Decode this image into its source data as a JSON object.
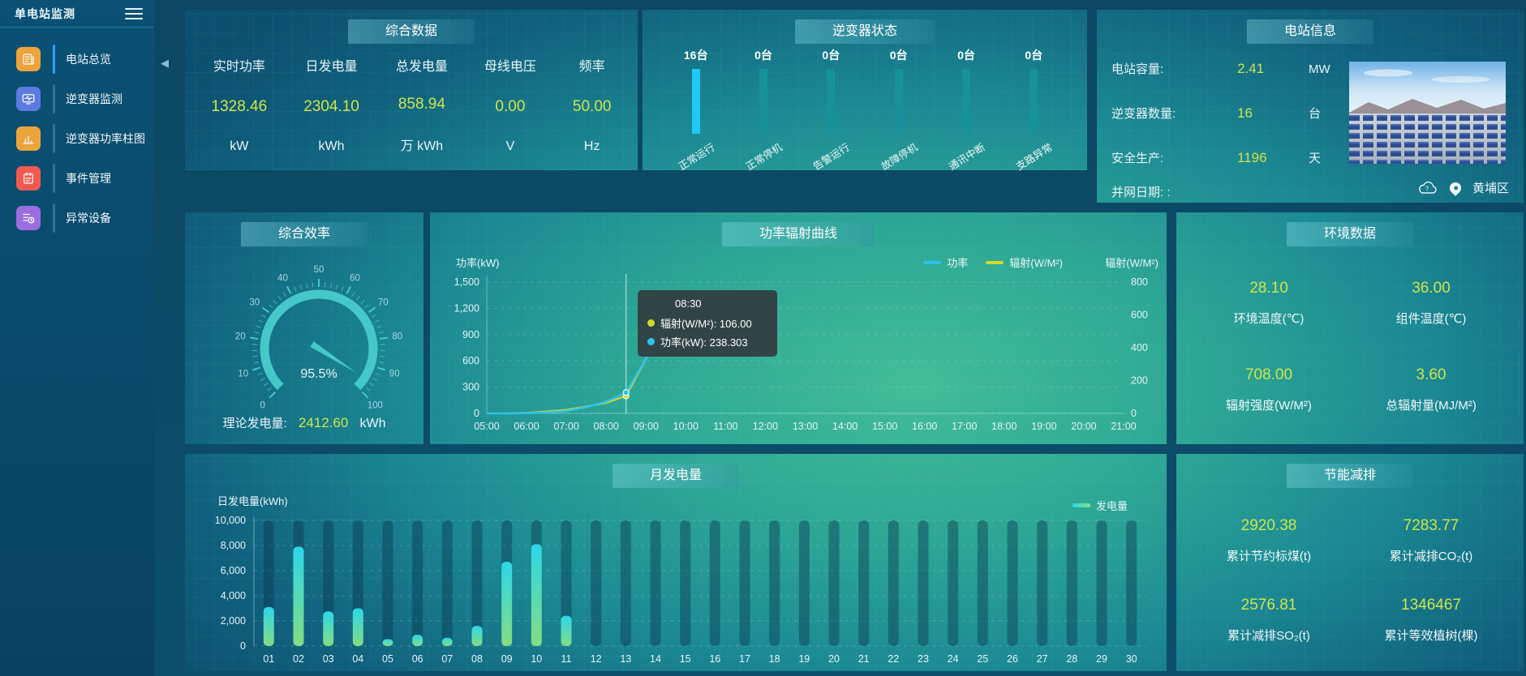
{
  "app": {
    "title": "单电站监测"
  },
  "sidebar": {
    "items": [
      {
        "label": "电站总览",
        "icon": "station-overview-icon",
        "color": "#eda33c",
        "active": true
      },
      {
        "label": "逆变器监测",
        "icon": "inverter-monitor-icon",
        "color": "#5b7be0",
        "active": false
      },
      {
        "label": "逆变器功率柱图",
        "icon": "inverter-power-bars-icon",
        "color": "#eda33c",
        "active": false
      },
      {
        "label": "事件管理",
        "icon": "event-management-icon",
        "color": "#f25a50",
        "active": false
      },
      {
        "label": "异常设备",
        "icon": "abnormal-device-icon",
        "color": "#9a6ce0",
        "active": false
      }
    ]
  },
  "panels": {
    "summary": {
      "title": "综合数据",
      "metrics": [
        {
          "label": "实时功率",
          "value": "1328.46",
          "unit": "kW"
        },
        {
          "label": "日发电量",
          "value": "2304.10",
          "unit": "kWh"
        },
        {
          "label": "总发电量",
          "value": "858.94",
          "unit": "万  kWh"
        },
        {
          "label": "母线电压",
          "value": "0.00",
          "unit": "V"
        },
        {
          "label": "频率",
          "value": "50.00",
          "unit": "Hz"
        }
      ]
    },
    "inverter_status": {
      "items": [
        {
          "count": "16台",
          "label": "正常运行",
          "highlight": true
        },
        {
          "count": "0台",
          "label": "正常停机",
          "highlight": false
        },
        {
          "count": "0台",
          "label": "告警运行",
          "highlight": false
        },
        {
          "count": "0台",
          "label": "故障停机",
          "highlight": false
        },
        {
          "count": "0台",
          "label": "通讯中断",
          "highlight": false
        },
        {
          "count": "0台",
          "label": "支路异常",
          "highlight": false
        }
      ]
    },
    "station_info": {
      "title": "电站信息",
      "rows": [
        {
          "label": "电站容量:",
          "value": "2.41",
          "unit": "MW"
        },
        {
          "label": "逆变器数量:",
          "value": "16",
          "unit": "台"
        },
        {
          "label": "安全生产:",
          "value": "1196",
          "unit": "天"
        },
        {
          "label": "并网日期:  :",
          "value": "",
          "unit": ""
        }
      ],
      "location": "黄埔区"
    },
    "efficiency": {
      "footer_label": "理论发电量:",
      "footer_value": "2412.60",
      "footer_unit": "kWh"
    },
    "environment": {
      "title": "环境数据",
      "metrics": [
        {
          "value": "28.10",
          "label": "环境温度(℃)"
        },
        {
          "value": "36.00",
          "label": "组件温度(℃)"
        },
        {
          "value": "708.00",
          "label": "辐射强度(W/M²)"
        },
        {
          "value": "3.60",
          "label": "总辐射量(MJ/M²)"
        }
      ]
    },
    "saving": {
      "title": "节能减排",
      "metrics": [
        {
          "value": "2920.38",
          "label": "累计节约标煤(t)"
        },
        {
          "value": "7283.77",
          "label": "累计减排CO₂(t)"
        },
        {
          "value": "2576.81",
          "label": "累计减排SO₂(t)"
        },
        {
          "value": "1346467",
          "label": "累计等效植树(棵)"
        }
      ]
    }
  },
  "chart_data": [
    {
      "type": "gauge",
      "title": "综合效率",
      "value": 95.5,
      "min": 0,
      "max": 100,
      "tick_step": 10,
      "detail": "95.5%",
      "color": "#45c8c8"
    },
    {
      "type": "bar",
      "title": "逆变器状态",
      "categories": [
        "正常运行",
        "正常停机",
        "告警运行",
        "故障停机",
        "通讯中断",
        "支路异常"
      ],
      "values": [
        16,
        0,
        0,
        0,
        0,
        0
      ],
      "unit": "台",
      "bar_style": "equal-height-pictorial",
      "highlight_color": "#1fc8f7",
      "normal_color": "#17929b"
    },
    {
      "type": "line",
      "title": "功率辐射曲线",
      "x_ticks": [
        "05:00",
        "06:00",
        "07:00",
        "08:00",
        "09:00",
        "10:00",
        "11:00",
        "12:00",
        "13:00",
        "14:00",
        "15:00",
        "16:00",
        "17:00",
        "18:00",
        "19:00",
        "20:00",
        "21:00"
      ],
      "y_left": {
        "title": "功率(kW)",
        "min": 0,
        "max": 1500,
        "step": 300
      },
      "y_right": {
        "title": "辐射(W/M²)",
        "min": 0,
        "max": 800,
        "step": 200
      },
      "series": [
        {
          "name": "功率",
          "axis": "left",
          "color": "#2ec3ee"
        },
        {
          "name": "辐射(W/M²)",
          "axis": "right",
          "color": "#d4d829"
        }
      ],
      "points": [
        {
          "t": "05:00",
          "power": 0,
          "radiation": 0
        },
        {
          "t": "05:30",
          "power": 0,
          "radiation": 0
        },
        {
          "t": "06:00",
          "power": 3,
          "radiation": 4
        },
        {
          "t": "06:30",
          "power": 10,
          "radiation": 12
        },
        {
          "t": "07:00",
          "power": 28,
          "radiation": 22
        },
        {
          "t": "07:30",
          "power": 70,
          "radiation": 42
        },
        {
          "t": "08:00",
          "power": 135,
          "radiation": 64
        },
        {
          "t": "08:30",
          "power": 238.303,
          "radiation": 106
        },
        {
          "t": "09:00",
          "power": 620,
          "radiation": 330
        },
        {
          "t": "09:15",
          "power": 900,
          "radiation": 480
        },
        {
          "t": "09:30",
          "power": 1160,
          "radiation": 620
        },
        {
          "t": "09:45",
          "power": 1328.46,
          "radiation": 708
        }
      ],
      "crosshair_t": "08:30",
      "tooltip": {
        "time": "08:30",
        "rows": [
          {
            "color": "#d4d829",
            "text": "辐射(W/M²): 106.00"
          },
          {
            "color": "#2ec3ee",
            "text": "功率(kW): 238.303"
          }
        ]
      }
    },
    {
      "type": "bar",
      "title": "月发电量",
      "ylabel": "日发电量(kWh)",
      "ylim": [
        0,
        10000
      ],
      "y_step": 2000,
      "legend": "发电量",
      "categories": [
        "01",
        "02",
        "03",
        "04",
        "05",
        "06",
        "07",
        "08",
        "09",
        "10",
        "11",
        "12",
        "13",
        "14",
        "15",
        "16",
        "17",
        "18",
        "19",
        "20",
        "21",
        "22",
        "23",
        "24",
        "25",
        "26",
        "27",
        "28",
        "29",
        "30"
      ],
      "values": [
        3100,
        7900,
        2750,
        3000,
        550,
        900,
        650,
        1600,
        6700,
        8100,
        2400,
        0,
        0,
        0,
        0,
        0,
        0,
        0,
        0,
        0,
        0,
        0,
        0,
        0,
        0,
        0,
        0,
        0,
        0,
        0
      ]
    }
  ]
}
